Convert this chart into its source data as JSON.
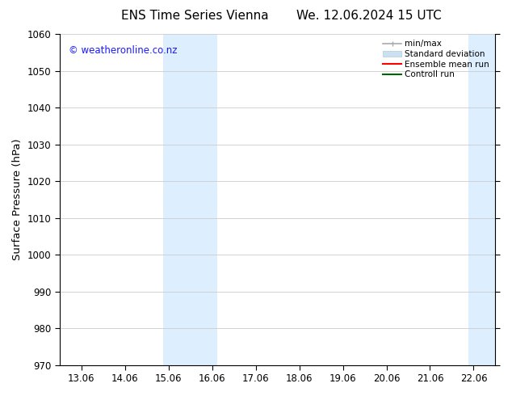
{
  "title_left": "ENS Time Series Vienna",
  "title_right": "We. 12.06.2024 15 UTC",
  "ylabel": "Surface Pressure (hPa)",
  "ylim": [
    970,
    1060
  ],
  "yticks": [
    970,
    980,
    990,
    1000,
    1010,
    1020,
    1030,
    1040,
    1050,
    1060
  ],
  "xtick_labels": [
    "13.06",
    "14.06",
    "15.06",
    "16.06",
    "17.06",
    "18.06",
    "19.06",
    "20.06",
    "21.06",
    "22.06"
  ],
  "xtick_positions": [
    0,
    1,
    2,
    3,
    4,
    5,
    6,
    7,
    8,
    9
  ],
  "xlim": [
    -0.5,
    9.5
  ],
  "shaded_regions": [
    {
      "xmin": 1.88,
      "xmax": 3.12,
      "color": "#ddeeff"
    },
    {
      "xmin": 8.88,
      "xmax": 9.5,
      "color": "#ddeeff"
    }
  ],
  "watermark_text": "© weatheronline.co.nz",
  "watermark_color": "#1a1aff",
  "bg_color": "#ffffff",
  "plot_bg_color": "#ffffff",
  "grid_color": "#cccccc",
  "tick_label_fontsize": 8.5,
  "axis_label_fontsize": 9.5,
  "title_fontsize": 11
}
